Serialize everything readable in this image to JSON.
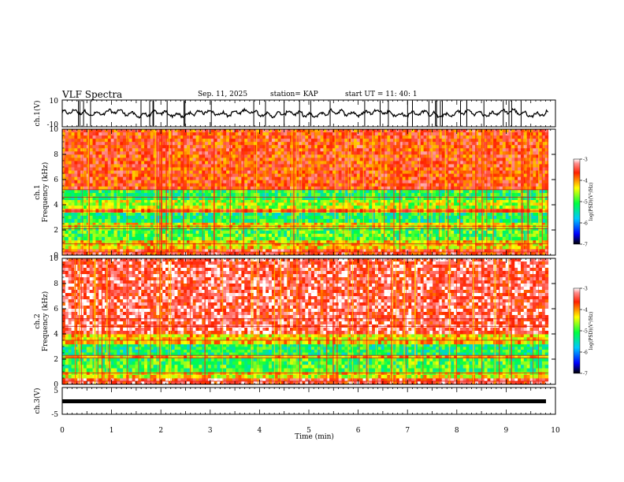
{
  "header": {
    "title": "VLF Spectra",
    "date": "Sep. 11, 2025",
    "station": "station= KAP",
    "start": "start  UT  =   11: 40: 1"
  },
  "chart_data": [
    {
      "type": "line",
      "panel": "ch1-waveform",
      "ylabel": "ch.1(V)",
      "ylim": [
        -10,
        10
      ],
      "yticks": [
        "10",
        "-10"
      ],
      "xlim": [
        0,
        10
      ],
      "description_values": {
        "approx_range_V": [
          -5,
          5
        ]
      }
    },
    {
      "type": "heatmap",
      "panel": "ch1-spectrogram",
      "ylabel": "ch.1\nFrequency (kHz)",
      "ylim": [
        0,
        10
      ],
      "yticks": [
        "0",
        "2",
        "4",
        "6",
        "8",
        "10"
      ],
      "xlim": [
        0,
        9.85
      ],
      "bands": [
        {
          "from": 0.0,
          "to": 0.5,
          "level": -3.6
        },
        {
          "from": 0.5,
          "to": 1.2,
          "level": -4.3
        },
        {
          "from": 1.2,
          "to": 2.2,
          "level": -5.0
        },
        {
          "from": 2.2,
          "to": 2.6,
          "level": -4.4
        },
        {
          "from": 2.6,
          "to": 3.4,
          "level": -5.2
        },
        {
          "from": 3.4,
          "to": 3.7,
          "level": -3.9
        },
        {
          "from": 3.7,
          "to": 4.4,
          "level": -4.6
        },
        {
          "from": 4.4,
          "to": 5.2,
          "level": -5.1
        },
        {
          "from": 5.2,
          "to": 10.0,
          "level": -3.7
        }
      ],
      "colorbar": {
        "label": "log(PSD)(V²/Hz)",
        "range": [
          -7,
          -3
        ],
        "ticks": [
          "-3",
          "-4",
          "-5",
          "-6",
          "-7"
        ]
      }
    },
    {
      "type": "heatmap",
      "panel": "ch2-spectrogram",
      "ylabel": "ch.2\nFrequency (kHz)",
      "ylim": [
        0,
        10
      ],
      "yticks": [
        "0",
        "2",
        "4",
        "6",
        "8",
        "10"
      ],
      "xlim": [
        0,
        9.85
      ],
      "bands": [
        {
          "from": 0.0,
          "to": 0.5,
          "level": -3.5
        },
        {
          "from": 0.5,
          "to": 1.0,
          "level": -4.4
        },
        {
          "from": 1.0,
          "to": 2.1,
          "level": -5.0
        },
        {
          "from": 2.1,
          "to": 2.3,
          "level": -4.2
        },
        {
          "from": 2.3,
          "to": 3.2,
          "level": -5.2
        },
        {
          "from": 3.2,
          "to": 4.0,
          "level": -4.3
        },
        {
          "from": 4.0,
          "to": 10.0,
          "level": -3.4
        }
      ],
      "colorbar": {
        "label": "log(PSD)(V²/Hz)",
        "range": [
          -7,
          -3
        ],
        "ticks": [
          "-3",
          "-4",
          "-5",
          "-6",
          "-7"
        ]
      }
    },
    {
      "type": "line",
      "panel": "ch3-waveform",
      "ylabel": "ch.3(V)",
      "ylim": [
        -5,
        5
      ],
      "yticks": [
        "5",
        "-5"
      ],
      "xlim": [
        0,
        10
      ],
      "description_values": {
        "approx_level_V": 0
      }
    }
  ],
  "xaxis": {
    "label": "Time  (min)",
    "range": [
      0,
      10
    ],
    "ticks": [
      "0",
      "1",
      "2",
      "3",
      "4",
      "5",
      "6",
      "7",
      "8",
      "9",
      "10"
    ]
  }
}
